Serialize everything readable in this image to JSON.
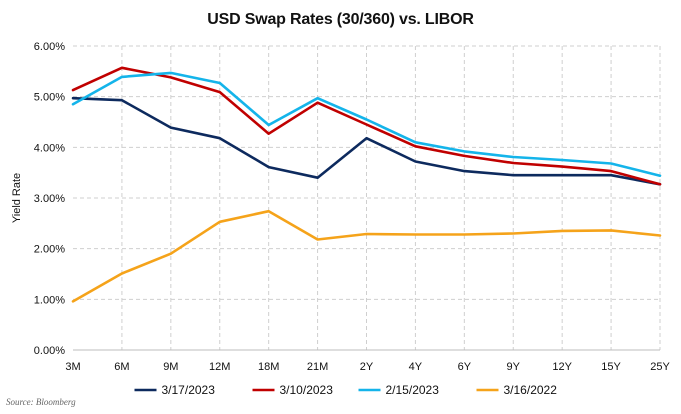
{
  "chart_data": {
    "type": "line",
    "title": "USD Swap Rates (30/360) vs. LIBOR",
    "xlabel": "",
    "ylabel": "Yield Rate",
    "ylim": [
      0,
      6
    ],
    "yticks": [
      "0.00%",
      "1.00%",
      "2.00%",
      "3.00%",
      "4.00%",
      "5.00%",
      "6.00%"
    ],
    "grid": true,
    "legend_position": "bottom",
    "categories": [
      "3M",
      "6M",
      "9M",
      "12M",
      "18M",
      "21M",
      "2Y",
      "4Y",
      "6Y",
      "9Y",
      "12Y",
      "15Y",
      "25Y"
    ],
    "series": [
      {
        "name": "3/17/2023",
        "color": "#0d2a5e",
        "values": [
          4.97,
          4.93,
          4.39,
          4.18,
          3.61,
          3.4,
          4.18,
          3.72,
          3.53,
          3.45,
          3.45,
          3.45,
          3.27
        ]
      },
      {
        "name": "3/10/2023",
        "color": "#c00000",
        "values": [
          5.13,
          5.57,
          5.38,
          5.09,
          4.27,
          4.88,
          4.45,
          4.02,
          3.83,
          3.69,
          3.62,
          3.53,
          3.27
        ]
      },
      {
        "name": "2/15/2023",
        "color": "#14b4ea",
        "values": [
          4.85,
          5.39,
          5.47,
          5.27,
          4.44,
          4.97,
          4.55,
          4.1,
          3.92,
          3.81,
          3.75,
          3.68,
          3.44
        ]
      },
      {
        "name": "3/16/2022",
        "color": "#f5a31a",
        "values": [
          0.96,
          1.51,
          1.9,
          2.53,
          2.74,
          2.18,
          2.29,
          2.28,
          2.28,
          2.3,
          2.35,
          2.36,
          2.26
        ]
      }
    ]
  },
  "source": "Source: Bloomberg"
}
